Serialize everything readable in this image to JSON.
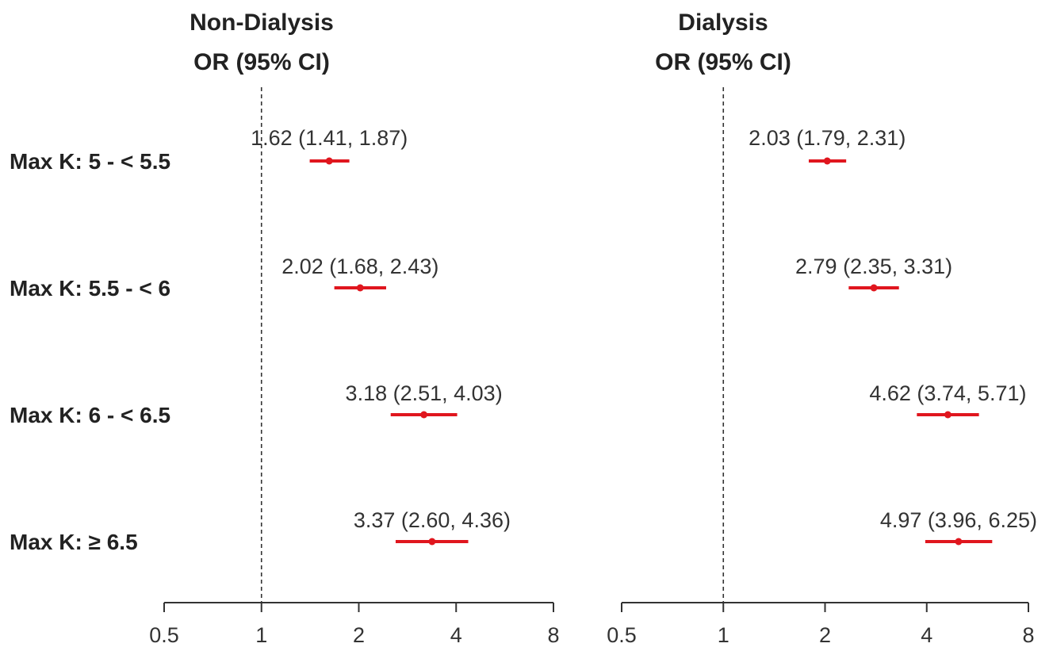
{
  "chart_data": [
    {
      "type": "forest",
      "title_line1": "Non-Dialysis",
      "title_line2": "OR (95% CI)",
      "scale": "log2",
      "xlim": [
        0.5,
        8
      ],
      "xticks": [
        "0.5",
        "1",
        "2",
        "4",
        "8"
      ],
      "reference_line": 1,
      "rows": [
        {
          "label": "Max K: 5 - < 5.5",
          "or": 1.62,
          "lower": 1.41,
          "upper": 1.87,
          "text": "1.62 (1.41, 1.87)"
        },
        {
          "label": "Max K: 5.5 - < 6",
          "or": 2.02,
          "lower": 1.68,
          "upper": 2.43,
          "text": "2.02 (1.68, 2.43)"
        },
        {
          "label": "Max K: 6 - < 6.5",
          "or": 3.18,
          "lower": 2.51,
          "upper": 4.03,
          "text": "3.18 (2.51, 4.03)"
        },
        {
          "label": "Max K: ≥ 6.5",
          "or": 3.37,
          "lower": 2.6,
          "upper": 4.36,
          "text": "3.37 (2.60, 4.36)"
        }
      ]
    },
    {
      "type": "forest",
      "title_line1": "Dialysis",
      "title_line2": "OR (95% CI)",
      "scale": "log2",
      "xlim": [
        0.5,
        8
      ],
      "xticks": [
        "0.5",
        "1",
        "2",
        "4",
        "8"
      ],
      "reference_line": 1,
      "rows": [
        {
          "label": "Max K: 5 - < 5.5",
          "or": 2.03,
          "lower": 1.79,
          "upper": 2.31,
          "text": "2.03 (1.79, 2.31)"
        },
        {
          "label": "Max K: 5.5 - < 6",
          "or": 2.79,
          "lower": 2.35,
          "upper": 3.31,
          "text": "2.79 (2.35, 3.31)"
        },
        {
          "label": "Max K: 6 - < 6.5",
          "or": 4.62,
          "lower": 3.74,
          "upper": 5.71,
          "text": "4.62 (3.74, 5.71)"
        },
        {
          "label": "Max K: ≥ 6.5",
          "or": 4.97,
          "lower": 3.96,
          "upper": 6.25,
          "text": "4.97 (3.96, 6.25)"
        }
      ]
    }
  ],
  "colors": {
    "ci": "#e0161e",
    "axis": "#333333",
    "text": "#222222"
  }
}
